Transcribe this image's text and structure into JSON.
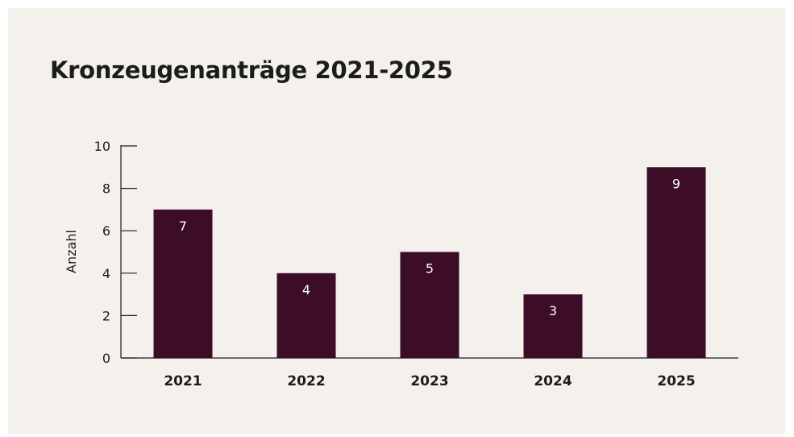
{
  "chart_data": {
    "type": "bar",
    "title": "Kronzeugenanträge 2021-2025",
    "xlabel": "",
    "ylabel": "Anzahl",
    "categories": [
      "2021",
      "2022",
      "2023",
      "2024",
      "2025"
    ],
    "values": [
      7,
      4,
      5,
      3,
      9
    ],
    "data_labels": [
      "7",
      "4",
      "5",
      "3",
      "9"
    ],
    "ylim": [
      0,
      10
    ],
    "yticks": [
      "0",
      "2",
      "4",
      "6",
      "8",
      "10"
    ],
    "grid": false,
    "legend": "none",
    "bar_color": "#3d0c26",
    "label_color": "#ffffff",
    "background_color": "#f4f1ed"
  }
}
